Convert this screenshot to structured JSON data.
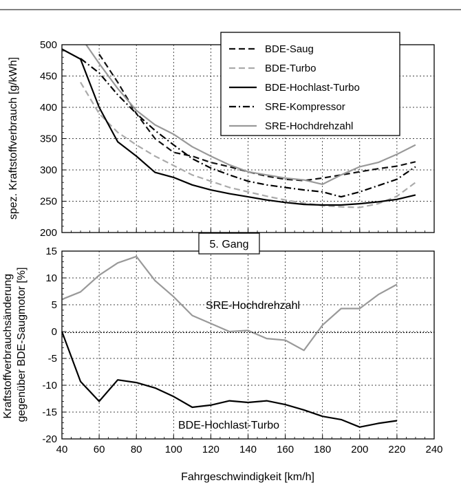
{
  "chart_data": [
    {
      "type": "line",
      "ylabel": "spez. Kraftstoffverbrauch [g/kWh]",
      "ylim": [
        200,
        500
      ],
      "xlim": [
        40,
        240
      ],
      "yticks": [
        "200",
        "250",
        "300",
        "350",
        "400",
        "450",
        "500"
      ],
      "grid": true,
      "legend_position": "top-right",
      "series": [
        {
          "name": "BDE-Saug",
          "color": "#111111",
          "dash": "dashed",
          "x": [
            60,
            70,
            80,
            90,
            100,
            110,
            120,
            130,
            140,
            150,
            160,
            170,
            180,
            190,
            200,
            210,
            220,
            230
          ],
          "y": [
            485,
            440,
            390,
            350,
            328,
            322,
            312,
            305,
            297,
            290,
            285,
            283,
            287,
            292,
            297,
            302,
            306,
            313
          ]
        },
        {
          "name": "BDE-Turbo",
          "color": "#aaaaaa",
          "dash": "dashed",
          "x": [
            50,
            60,
            70,
            80,
            90,
            100,
            110,
            120,
            130,
            140,
            150,
            160,
            170,
            180,
            190,
            200,
            210,
            220,
            230
          ],
          "y": [
            440,
            390,
            360,
            340,
            322,
            307,
            292,
            282,
            272,
            265,
            258,
            252,
            247,
            243,
            241,
            240,
            246,
            258,
            280
          ]
        },
        {
          "name": "BDE-Hochlast-Turbo",
          "color": "#000000",
          "dash": "solid",
          "x": [
            40,
            50,
            60,
            70,
            80,
            90,
            100,
            110,
            120,
            130,
            140,
            150,
            160,
            170,
            180,
            190,
            200,
            210,
            220,
            230
          ],
          "y": [
            493,
            477,
            400,
            345,
            322,
            296,
            288,
            276,
            268,
            262,
            257,
            252,
            248,
            245,
            244,
            244,
            246,
            249,
            253,
            260
          ]
        },
        {
          "name": "SRE-Kompressor",
          "color": "#000000",
          "dash": "dashdot",
          "x": [
            50,
            60,
            70,
            80,
            90,
            100,
            110,
            120,
            130,
            140,
            150,
            160,
            170,
            180,
            190,
            200,
            210,
            220,
            230
          ],
          "y": [
            478,
            455,
            420,
            390,
            363,
            340,
            318,
            303,
            292,
            282,
            276,
            272,
            268,
            265,
            257,
            265,
            275,
            285,
            305
          ]
        },
        {
          "name": "SRE-Hochdrehzahl",
          "color": "#999999",
          "dash": "solid",
          "x": [
            53,
            60,
            70,
            80,
            90,
            100,
            110,
            120,
            130,
            140,
            150,
            160,
            170,
            180,
            190,
            200,
            210,
            220,
            230
          ],
          "y": [
            500,
            470,
            430,
            395,
            372,
            357,
            337,
            322,
            308,
            297,
            292,
            287,
            284,
            277,
            292,
            305,
            312,
            325,
            340
          ]
        }
      ]
    },
    {
      "type": "line",
      "xlabel": "Fahrgeschwindigkeit [km/h]",
      "ylabel": "Kraftstoffverbrauchsänderung gegenüber BDE-Saugmotor [%]",
      "ylabel_lines": [
        "Kraftstoffverbrauchsänderung",
        "gegenüber BDE-Saugmotor [%]"
      ],
      "ylim": [
        -20,
        15
      ],
      "xlim": [
        40,
        240
      ],
      "xticks": [
        "40",
        "60",
        "80",
        "100",
        "120",
        "140",
        "160",
        "180",
        "200",
        "220",
        "240"
      ],
      "yticks": [
        "-20",
        "-15",
        "-10",
        "-5",
        "0",
        "5",
        "10",
        "15"
      ],
      "grid": true,
      "title_box": "5. Gang",
      "annotations": [
        "SRE-Hochdrehzahl",
        "BDE-Hochlast-Turbo"
      ],
      "series": [
        {
          "name": "SRE-Hochdrehzahl",
          "color": "#999999",
          "dash": "solid",
          "x": [
            40,
            50,
            60,
            70,
            80,
            90,
            100,
            110,
            120,
            130,
            140,
            150,
            160,
            170,
            180,
            190,
            200,
            210,
            220
          ],
          "y": [
            6,
            7.4,
            10.5,
            12.8,
            14,
            9.5,
            6.5,
            3,
            1.5,
            0,
            0.2,
            -1.3,
            -1.6,
            -3.5,
            1.2,
            4.3,
            4.3,
            6.9,
            8.8
          ]
        },
        {
          "name": "BDE-Hochlast-Turbo",
          "color": "#000000",
          "dash": "solid",
          "x": [
            40,
            50,
            60,
            70,
            80,
            90,
            100,
            110,
            120,
            130,
            140,
            150,
            160,
            170,
            180,
            190,
            200,
            210,
            220
          ],
          "y": [
            0,
            -9.3,
            -13,
            -9,
            -9.5,
            -10.5,
            -12.1,
            -14.1,
            -13.7,
            -12.9,
            -13.2,
            -12.9,
            -13.6,
            -14.6,
            -15.8,
            -16.4,
            -17.8,
            -17.1,
            -16.6
          ]
        }
      ]
    }
  ]
}
